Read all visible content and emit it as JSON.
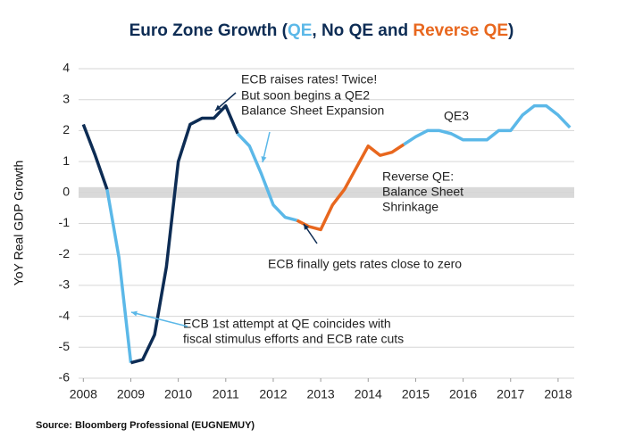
{
  "chart_data": {
    "type": "line",
    "title_parts": [
      {
        "text": "Euro Zone Growth (",
        "color": "#0d2c54"
      },
      {
        "text": "QE",
        "color": "#5bb8e8"
      },
      {
        "text": ", No QE and ",
        "color": "#0d2c54"
      },
      {
        "text": "Reverse QE",
        "color": "#e8671e"
      },
      {
        "text": ")",
        "color": "#0d2c54"
      }
    ],
    "y_label": "YoY Real GDP Growth",
    "source": "Source: Bloomberg Professional (EUGNEMUY)",
    "xlim": [
      2007.9,
      2018.34
    ],
    "xticks": [
      2008,
      2009,
      2010,
      2011,
      2012,
      2013,
      2014,
      2015,
      2016,
      2017,
      2018
    ],
    "ylim": [
      -6,
      4
    ],
    "yticks": [
      -6,
      -5,
      -4,
      -3,
      -2,
      -1,
      0,
      1,
      2,
      3,
      4
    ],
    "grid": true,
    "series": [
      {
        "color": "#0d2c54",
        "x": [
          2008.0,
          2008.25,
          2008.5
        ],
        "values": [
          2.2,
          1.2,
          0.1
        ]
      },
      {
        "color": "#5bb8e8",
        "x": [
          2008.5,
          2008.75,
          2009.0
        ],
        "values": [
          0.1,
          -2.1,
          -5.5
        ]
      },
      {
        "color": "#0d2c54",
        "x": [
          2009.0,
          2009.25,
          2009.5,
          2009.75,
          2010.0,
          2010.25,
          2010.5,
          2010.75,
          2011.0,
          2011.25
        ],
        "values": [
          -5.5,
          -5.4,
          -4.6,
          -2.4,
          1.0,
          2.2,
          2.4,
          2.4,
          2.8,
          1.9
        ]
      },
      {
        "color": "#5bb8e8",
        "x": [
          2011.25,
          2011.5,
          2011.75,
          2012.0,
          2012.25,
          2012.5
        ],
        "values": [
          1.9,
          1.5,
          0.6,
          -0.4,
          -0.8,
          -0.9
        ]
      },
      {
        "color": "#e8671e",
        "x": [
          2012.5,
          2012.75,
          2013.0,
          2013.25,
          2013.5,
          2013.75,
          2014.0,
          2014.25,
          2014.5,
          2014.75
        ],
        "values": [
          -0.9,
          -1.1,
          -1.2,
          -0.4,
          0.1,
          0.8,
          1.5,
          1.2,
          1.3,
          1.55
        ]
      },
      {
        "color": "#5bb8e8",
        "x": [
          2014.75,
          2015.0,
          2015.25,
          2015.5,
          2015.75,
          2016.0,
          2016.25,
          2016.5,
          2016.75,
          2017.0,
          2017.25,
          2017.5,
          2017.75,
          2018.0,
          2018.25
        ],
        "values": [
          1.55,
          1.8,
          2.0,
          2.0,
          1.9,
          1.7,
          1.7,
          1.7,
          2.0,
          2.0,
          2.5,
          2.8,
          2.8,
          2.5,
          2.1
        ]
      }
    ],
    "annotations": [
      {
        "color": "#0d2c54",
        "lines": [
          "ECB raises rates! Twice!"
        ]
      },
      {
        "color": "#5bb8e8",
        "lines": [
          "But soon begins a QE2",
          "Balance Sheet Expansion"
        ]
      },
      {
        "color": "#5bb8e8",
        "lines": [
          "QE3"
        ]
      },
      {
        "color": "#e8671e",
        "lines": [
          "Reverse QE:",
          "Balance Sheet",
          "Shrinkage"
        ]
      },
      {
        "color": "#0d2c54",
        "lines": [
          "ECB finally gets rates close to zero"
        ]
      },
      {
        "color": "#5bb8e8",
        "lines": [
          "ECB 1st attempt at QE coincides with",
          "fiscal stimulus efforts and ECB rate cuts"
        ]
      }
    ]
  }
}
